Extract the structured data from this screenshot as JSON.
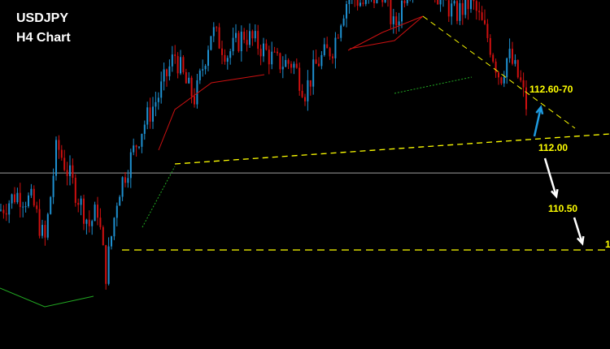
{
  "chart_data": {
    "type": "candlestick",
    "title": "USDJPY",
    "subtitle": "H4 Chart",
    "symbol": "USDJPY",
    "timeframe": "H4",
    "colors": {
      "background": "#000000",
      "bull": "#1e90d0",
      "bear": "#d01010",
      "trendline": "#ffff00",
      "current_price_line": "#a0a0a0",
      "pattern_lines": "#cc1111",
      "support_dots": "#22aa22",
      "up_arrow": "#1e9be0",
      "down_arrow": "#ffffff"
    },
    "approx_price_path": [
      111.05,
      111.28,
      111.17,
      110.6,
      111.96,
      111.4,
      110.84,
      111.07,
      110.16,
      111.3,
      111.75,
      112.2,
      112.65,
      113.22,
      112.77,
      112.6,
      113.56,
      113.22,
      113.5,
      113.33,
      113.1,
      113.1,
      112.71,
      113.1,
      113.33,
      113.78,
      114.06,
      113.89,
      114.12,
      113.56,
      114.18,
      114.52,
      114.01,
      113.78,
      113.95,
      113.44,
      112.88,
      113.22,
      112.82,
      112.37
    ],
    "levels": [
      {
        "label": "112.60-70",
        "type": "target",
        "direction": "up"
      },
      {
        "label": "112.00",
        "type": "neckline"
      },
      {
        "label": "110.50",
        "type": "target",
        "direction": "down"
      },
      {
        "label": "1",
        "type": "truncated-label"
      }
    ],
    "current_price_approx": 111.57,
    "grid": false
  }
}
